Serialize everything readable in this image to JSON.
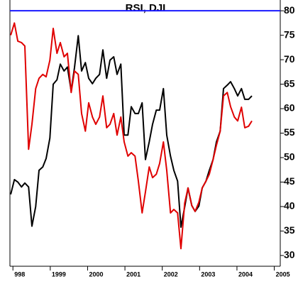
{
  "chart_data": {
    "type": "line",
    "title": "RSI, DJI",
    "x": [
      1997.94,
      1998.04,
      1998.13,
      1998.23,
      1998.32,
      1998.42,
      1998.51,
      1998.61,
      1998.7,
      1998.8,
      1998.89,
      1998.99,
      1999.08,
      1999.18,
      1999.27,
      1999.37,
      1999.46,
      1999.56,
      1999.65,
      1999.75,
      1999.84,
      1999.94,
      2000.03,
      2000.13,
      2000.22,
      2000.32,
      2000.41,
      2000.51,
      2000.6,
      2000.7,
      2000.79,
      2000.89,
      2000.98,
      2001.08,
      2001.17,
      2001.27,
      2001.36,
      2001.46,
      2001.55,
      2001.65,
      2001.74,
      2001.84,
      2001.93,
      2002.03,
      2002.12,
      2002.22,
      2002.31,
      2002.41,
      2002.5,
      2002.6,
      2002.69,
      2002.79,
      2002.88,
      2002.98,
      2003.07,
      2003.17,
      2003.26,
      2003.36,
      2003.45,
      2003.55,
      2003.64,
      2003.74,
      2003.83,
      2003.93,
      2004.02,
      2004.12,
      2004.21,
      2004.31,
      2004.4
    ],
    "series": [
      {
        "color": "#000000",
        "values": [
          42.5,
          45.5,
          45,
          44,
          44.8,
          44,
          36,
          40,
          47.4,
          48.1,
          49.8,
          54,
          65,
          65.9,
          69.1,
          67.7,
          68.5,
          63.6,
          68.4,
          74.9,
          67.7,
          69.4,
          66.2,
          65.1,
          66.2,
          67,
          72,
          66.2,
          69.9,
          70.6,
          67,
          69.1,
          54.6,
          54.6,
          60.4,
          59,
          59,
          61.2,
          49.6,
          53.2,
          56.8,
          59.7,
          59.7,
          64.1,
          54.6,
          50.3,
          47.4,
          45.2,
          35.8,
          39.9,
          43.8,
          40.2,
          39,
          40.1,
          43.8,
          45.2,
          47.4,
          49.6,
          53.2,
          55.4,
          64.1,
          64.8,
          65.5,
          64.1,
          62.6,
          64.1,
          61.9,
          61.9,
          62.6
        ]
      },
      {
        "color": "#e00000",
        "values": [
          75,
          77.5,
          73.8,
          73.5,
          72.8,
          51.7,
          56.8,
          64.1,
          66.2,
          67,
          66.5,
          69.9,
          76.4,
          71.3,
          73.5,
          70.6,
          71.3,
          63.3,
          67.7,
          67,
          59,
          55.4,
          61.2,
          58.3,
          56.8,
          58.3,
          62.6,
          56.1,
          56.8,
          59,
          54.6,
          58.3,
          53.2,
          50.3,
          51,
          50.3,
          45.2,
          38.7,
          43,
          48.1,
          45.9,
          46.6,
          48.8,
          53.2,
          47.4,
          38.7,
          39.4,
          38.7,
          31.4,
          40.7,
          43.8,
          40.2,
          39,
          40.9,
          43.8,
          45.2,
          46.6,
          49.6,
          52.5,
          55.4,
          62.6,
          63.3,
          60.4,
          58.3,
          57.5,
          60.3,
          56.1,
          56.4,
          57.5
        ]
      }
    ],
    "xlim": [
      1997.92,
      2005.16
    ],
    "xticks": [
      {
        "value": 1998,
        "label": "998"
      },
      1999,
      2000,
      2001,
      2002,
      2003,
      2004,
      2005
    ],
    "ylim": [
      27.8,
      82.2
    ],
    "yticks": [
      30,
      35,
      40,
      45,
      50,
      55,
      60,
      65,
      70,
      75,
      80
    ],
    "hline": {
      "value": 80,
      "color": "#1a1aff"
    }
  }
}
